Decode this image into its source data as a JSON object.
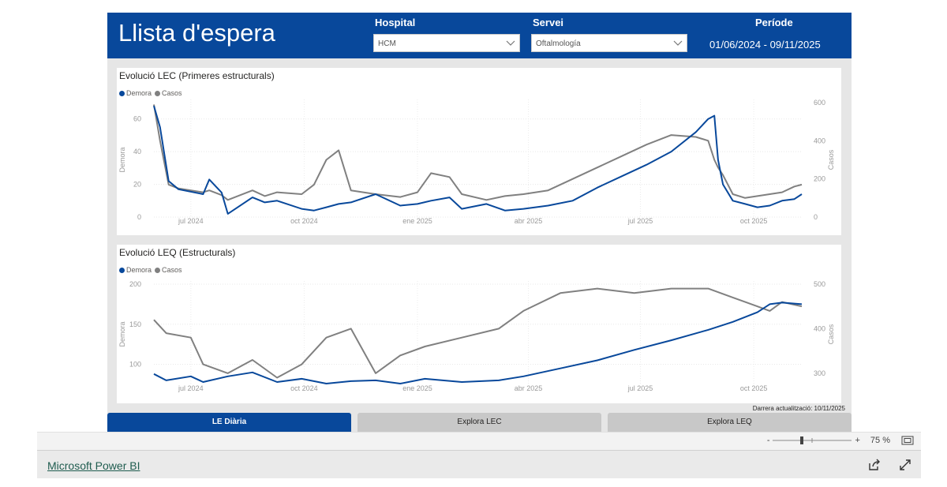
{
  "header": {
    "title": "Llista d'espera",
    "filters": {
      "hospital": {
        "label": "Hospital",
        "value": "HCM"
      },
      "servei": {
        "label": "Servei",
        "value": "Oftalmología"
      },
      "periode": {
        "label": "Període",
        "value": "01/06/2024 - 09/11/2025"
      }
    }
  },
  "chart_data": [
    {
      "type": "line",
      "title": "Evolució LEC (Primeres estructurals)",
      "legend": [
        "Demora",
        "Casos"
      ],
      "xlabel": "",
      "x_tick_labels": [
        "jul 2024",
        "oct 2024",
        "ene 2025",
        "abr 2025",
        "jul 2025",
        "oct 2025"
      ],
      "x_range_days": [
        0,
        526
      ],
      "x_tick_days": [
        30,
        122,
        214,
        304,
        395,
        487
      ],
      "left_axis": {
        "label": "Demora",
        "ticks": [
          0,
          20,
          40,
          60
        ],
        "ylim": [
          0,
          70
        ]
      },
      "right_axis": {
        "label": "Casos",
        "ticks": [
          0,
          200,
          400,
          600
        ],
        "ylim": [
          0,
          600
        ]
      },
      "series": [
        {
          "name": "Demora",
          "axis": "left",
          "color": "#08489b",
          "x": [
            0,
            5,
            12,
            20,
            40,
            45,
            55,
            60,
            80,
            90,
            100,
            120,
            130,
            140,
            150,
            160,
            180,
            200,
            214,
            225,
            240,
            250,
            270,
            285,
            300,
            320,
            340,
            360,
            380,
            400,
            420,
            440,
            450,
            455,
            458,
            462,
            470,
            480,
            490,
            500,
            510,
            520,
            526
          ],
          "y": [
            68,
            55,
            22,
            17,
            14,
            23,
            15,
            2,
            12,
            9,
            10,
            5,
            4,
            6,
            8,
            9,
            14,
            7,
            8,
            10,
            12,
            5,
            8,
            4,
            5,
            7,
            10,
            18,
            25,
            32,
            40,
            52,
            60,
            62,
            35,
            20,
            10,
            8,
            6,
            7,
            10,
            11,
            14
          ]
        },
        {
          "name": "Casos",
          "axis": "right",
          "color": "#808080",
          "x": [
            0,
            5,
            12,
            20,
            40,
            45,
            55,
            60,
            80,
            90,
            100,
            120,
            130,
            140,
            150,
            160,
            180,
            200,
            214,
            225,
            240,
            250,
            270,
            285,
            300,
            320,
            340,
            360,
            380,
            400,
            420,
            440,
            450,
            455,
            458,
            462,
            470,
            480,
            490,
            500,
            510,
            520,
            526
          ],
          "y": [
            590,
            400,
            170,
            150,
            130,
            140,
            115,
            90,
            140,
            110,
            130,
            120,
            170,
            300,
            350,
            140,
            120,
            105,
            130,
            230,
            210,
            120,
            90,
            110,
            120,
            140,
            200,
            260,
            320,
            380,
            430,
            420,
            400,
            300,
            260,
            220,
            120,
            100,
            110,
            120,
            130,
            160,
            170
          ]
        }
      ]
    },
    {
      "type": "line",
      "title": "Evolució LEQ (Estructurals)",
      "legend": [
        "Demora",
        "Casos"
      ],
      "xlabel": "",
      "x_tick_labels": [
        "jul 2024",
        "oct 2024",
        "ene 2025",
        "abr 2025",
        "jul 2025",
        "oct 2025"
      ],
      "x_range_days": [
        0,
        526
      ],
      "x_tick_days": [
        30,
        122,
        214,
        304,
        395,
        487
      ],
      "left_axis": {
        "label": "Demora",
        "ticks": [
          100,
          150,
          200
        ],
        "ylim": [
          75,
          200
        ]
      },
      "right_axis": {
        "label": "Casos",
        "ticks": [
          300,
          400,
          500
        ],
        "ylim": [
          275,
          500
        ]
      },
      "series": [
        {
          "name": "Demora",
          "axis": "left",
          "color": "#08489b",
          "x": [
            0,
            10,
            30,
            40,
            60,
            80,
            100,
            120,
            140,
            160,
            180,
            200,
            220,
            250,
            280,
            300,
            330,
            360,
            390,
            420,
            450,
            470,
            490,
            500,
            510,
            526
          ],
          "y": [
            88,
            80,
            85,
            78,
            85,
            90,
            78,
            82,
            76,
            79,
            80,
            76,
            82,
            78,
            80,
            85,
            95,
            105,
            118,
            130,
            143,
            153,
            165,
            175,
            177,
            175
          ]
        },
        {
          "name": "Casos",
          "axis": "right",
          "color": "#808080",
          "x": [
            0,
            10,
            30,
            40,
            60,
            80,
            100,
            120,
            140,
            160,
            180,
            200,
            220,
            250,
            280,
            300,
            330,
            360,
            390,
            420,
            450,
            470,
            490,
            500,
            510,
            526
          ],
          "y": [
            420,
            390,
            380,
            320,
            300,
            330,
            290,
            320,
            380,
            400,
            300,
            340,
            360,
            380,
            400,
            440,
            480,
            490,
            480,
            490,
            490,
            470,
            450,
            440,
            460,
            450
          ]
        }
      ]
    }
  ],
  "footer_note": "Darrera actualització: 10/11/2025",
  "tabs": [
    "LE Diària",
    "Explora LEC",
    "Explora LEQ"
  ],
  "zoom": {
    "minus": "-",
    "plus": "+",
    "value": "75 %"
  },
  "bottom_bar": {
    "link": "Microsoft Power BI"
  },
  "colors": {
    "brand": "#08489b",
    "demora": "#08489b",
    "casos": "#808080",
    "tab_inactive": "#c8c8c8"
  }
}
